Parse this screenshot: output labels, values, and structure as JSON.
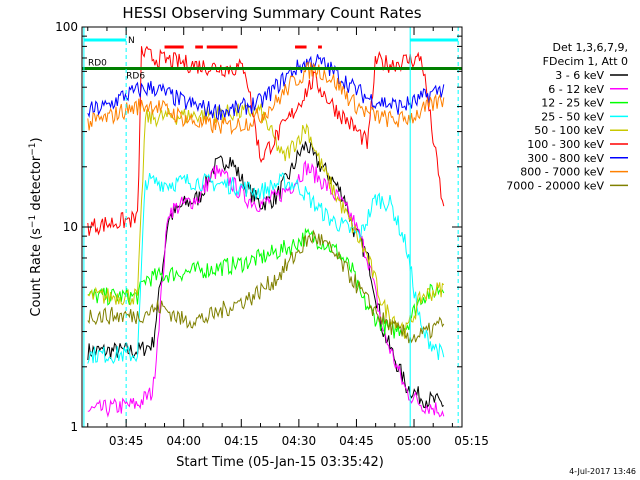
{
  "chart_data": {
    "type": "line",
    "title": "HESSI Observing Summary Count Rates",
    "xlabel": "Start Time (05-Jan-15 03:35:42)",
    "ylabel": "Count Rate (s⁻¹ detector⁻¹)",
    "ylabel_base": "Count Rate (s",
    "ylabel_sup": "−1",
    "ylabel_tail": " detector",
    "ylabel_close": ")",
    "yscale": "log",
    "ylim": [
      1,
      100
    ],
    "xlim_minutes": [
      3.5,
      102.5
    ],
    "x_tick_labels": [
      {
        "label": "03:45",
        "min": 15
      },
      {
        "label": "04:00",
        "min": 30
      },
      {
        "label": "04:15",
        "min": 45
      },
      {
        "label": "04:30",
        "min": 60
      },
      {
        "label": "04:45",
        "min": 75
      },
      {
        "label": "05:00",
        "min": 90
      },
      {
        "label": "05:15",
        "min": 105
      }
    ],
    "y_tick_labels": [
      {
        "label": "1",
        "value": 1
      },
      {
        "label": "10",
        "value": 10
      },
      {
        "label": "100",
        "value": 100
      }
    ],
    "legend_header": [
      "Det 1,3,6,7,9,",
      "FDecim 1, Att 0"
    ],
    "legend_position": "right",
    "annotations": [
      "RD0",
      "RD6",
      "N"
    ],
    "footer_date": "4-Jul-2017 13:46",
    "series": [
      {
        "name": "3 - 6 keV",
        "color": "#000000",
        "x": [
          5,
          18,
          22,
          26,
          30,
          34,
          38,
          42,
          46,
          50,
          54,
          58,
          60,
          62,
          64,
          68,
          72,
          74,
          78,
          82,
          88,
          92,
          98
        ],
        "values": [
          2.4,
          2.4,
          2.6,
          11,
          13,
          14,
          20,
          22,
          16,
          13,
          14,
          19,
          23,
          26,
          22,
          18,
          14,
          10,
          7,
          3,
          1.6,
          1.4,
          1.3
        ]
      },
      {
        "name": "6 - 12 keV",
        "color": "#ff00ff",
        "x": [
          5,
          18,
          22,
          26,
          30,
          34,
          38,
          42,
          46,
          50,
          54,
          58,
          62,
          66,
          70,
          74,
          78,
          82,
          88,
          92,
          98
        ],
        "values": [
          1.2,
          1.3,
          1.5,
          12,
          13,
          14,
          19,
          17,
          14,
          13,
          14,
          16,
          20,
          17,
          14,
          11,
          7,
          3,
          1.5,
          1.3,
          1.2
        ]
      },
      {
        "name": "12 - 25 keV",
        "color": "#00ff00",
        "x": [
          5,
          18,
          20,
          26,
          32,
          38,
          44,
          50,
          54,
          58,
          62,
          66,
          70,
          74,
          76,
          80,
          84,
          88,
          92,
          98
        ],
        "values": [
          4.5,
          4.5,
          5.5,
          5.8,
          6,
          6.2,
          6.5,
          7,
          7.5,
          8,
          9,
          8.5,
          7.5,
          6,
          4.5,
          3.5,
          3,
          3.2,
          4.5,
          5
        ]
      },
      {
        "name": "25 - 50 keV",
        "color": "#00ffff",
        "x": [
          5,
          18,
          20,
          26,
          32,
          38,
          44,
          50,
          56,
          60,
          64,
          68,
          72,
          76,
          80,
          84,
          88,
          92,
          98
        ],
        "values": [
          2.3,
          2.3,
          17,
          16.5,
          17,
          16.5,
          16,
          15,
          17,
          16,
          13,
          11,
          10,
          9,
          14,
          13,
          8,
          3,
          2.2
        ]
      },
      {
        "name": "50 - 100 keV",
        "color": "#c8c800",
        "x": [
          5,
          18,
          20,
          50,
          56,
          60,
          62,
          64,
          66,
          70,
          74,
          78,
          82,
          88,
          92,
          98
        ],
        "values": [
          4.5,
          4.5,
          35,
          38,
          22,
          28,
          32,
          25,
          20,
          14,
          10,
          7,
          4,
          3,
          4.5,
          5
        ]
      },
      {
        "name": "100 - 300 keV",
        "color": "#ff0000",
        "x": [
          5,
          18,
          19,
          22,
          26,
          30,
          34,
          38,
          42,
          46,
          50,
          54,
          58,
          62,
          64,
          66,
          70,
          74,
          78,
          80,
          84,
          88,
          92,
          98
        ],
        "values": [
          10,
          11,
          75,
          70,
          68,
          66,
          64,
          63,
          62,
          63,
          22,
          28,
          36,
          48,
          55,
          48,
          38,
          32,
          26,
          68,
          65,
          68,
          70,
          11
        ]
      },
      {
        "name": "300 - 800 keV",
        "color": "#0000ff",
        "x": [
          5,
          10,
          14,
          18,
          22,
          26,
          30,
          34,
          38,
          42,
          46,
          50,
          54,
          58,
          62,
          64,
          66,
          70,
          74,
          78,
          82,
          86,
          90,
          94,
          98
        ],
        "values": [
          38,
          40,
          45,
          48,
          50,
          46,
          42,
          40,
          38,
          38,
          40,
          42,
          50,
          60,
          66,
          68,
          66,
          58,
          50,
          44,
          42,
          40,
          42,
          46,
          50
        ]
      },
      {
        "name": "800 - 7000 keV",
        "color": "#ff8000",
        "x": [
          5,
          10,
          14,
          18,
          22,
          26,
          30,
          34,
          38,
          42,
          46,
          50,
          54,
          58,
          62,
          64,
          66,
          70,
          74,
          78,
          82,
          86,
          90,
          94,
          98
        ],
        "values": [
          33,
          35,
          38,
          40,
          41,
          38,
          35,
          33,
          32,
          32,
          33,
          36,
          42,
          52,
          60,
          62,
          60,
          52,
          42,
          37,
          35,
          34,
          36,
          40,
          44
        ]
      },
      {
        "name": "7000 - 20000 keV",
        "color": "#808000",
        "x": [
          5,
          12,
          18,
          24,
          30,
          36,
          42,
          48,
          54,
          58,
          62,
          64,
          66,
          70,
          74,
          78,
          82,
          86,
          90,
          94,
          98
        ],
        "values": [
          3.6,
          3.6,
          3.6,
          4,
          3.4,
          3.5,
          4,
          4.5,
          5.5,
          6.8,
          8.5,
          9,
          8.5,
          7,
          5.5,
          4.2,
          3.4,
          3,
          2.8,
          3,
          3.4
        ]
      }
    ],
    "rd0_level": 62,
    "cyan_bars": [
      [
        4,
        15
      ],
      [
        89,
        101.5
      ]
    ],
    "red_dashes": [
      [
        25,
        30
      ],
      [
        33,
        35
      ],
      [
        36,
        44
      ],
      [
        59,
        62
      ],
      [
        65,
        66
      ]
    ]
  }
}
